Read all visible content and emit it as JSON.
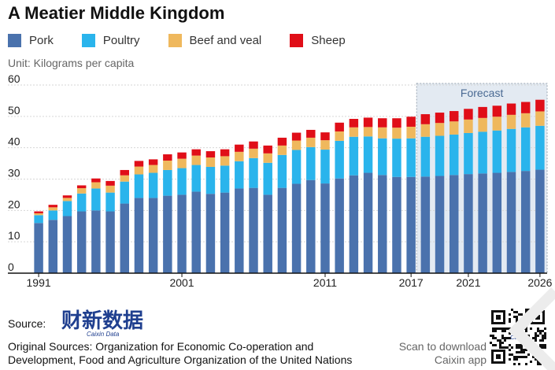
{
  "title": "A Meatier Middle Kingdom",
  "unit_label": "Unit: Kilograms per capita",
  "legend": [
    {
      "label": "Pork",
      "color": "#4a72ad"
    },
    {
      "label": "Poultry",
      "color": "#2ab4ec"
    },
    {
      "label": "Beef and veal",
      "color": "#efb85d"
    },
    {
      "label": "Sheep",
      "color": "#e00e18"
    }
  ],
  "forecast_label": "Forecast",
  "source_label": "Source:",
  "logo": {
    "name": "财新数据",
    "subtitle": "Caixin Data"
  },
  "original_sources": "Original Sources: Organization for Economic Co-operation and Development, Food and Agriculture Organization of the United Nations",
  "scan_text": "Scan to download Caixin app",
  "qr_caption": "Caixin",
  "chart_data": {
    "type": "bar",
    "stacked": true,
    "title": "A Meatier Middle Kingdom",
    "ylabel": "Unit: Kilograms per capita",
    "ylim": [
      0,
      60
    ],
    "yticks": [
      0,
      10,
      20,
      30,
      40,
      50,
      60
    ],
    "xtick_labels": [
      "1991",
      "2001",
      "2011",
      "2017",
      "2021",
      "2026"
    ],
    "grid": true,
    "forecast_range": [
      "2018",
      "2026"
    ],
    "categories": [
      "1991",
      "1992",
      "1993",
      "1994",
      "1995",
      "1996",
      "1997",
      "1998",
      "1999",
      "2000",
      "2001",
      "2002",
      "2003",
      "2004",
      "2005",
      "2006",
      "2007",
      "2008",
      "2009",
      "2010",
      "2011",
      "2012",
      "2013",
      "2014",
      "2015",
      "2016",
      "2017",
      "2018",
      "2019",
      "2020",
      "2021",
      "2022",
      "2023",
      "2024",
      "2025",
      "2026"
    ],
    "series": [
      {
        "name": "Pork",
        "color": "#4a72ad",
        "values": [
          16,
          17,
          18.2,
          19.7,
          20,
          19.7,
          22.2,
          24,
          24,
          24.7,
          25,
          26,
          25.3,
          25.7,
          27,
          27.2,
          25,
          27.2,
          28.5,
          29.7,
          28.6,
          30.2,
          31.2,
          32,
          31.3,
          30.7,
          30.7,
          30.8,
          31,
          31.3,
          31.6,
          31.8,
          32,
          32.3,
          32.6,
          33
        ]
      },
      {
        "name": "Poultry",
        "color": "#2ab4ec",
        "values": [
          2.5,
          3,
          4.8,
          5.7,
          7,
          6,
          7,
          7.5,
          8,
          8.2,
          8.5,
          8.5,
          8.6,
          8.6,
          8.7,
          9.5,
          10.2,
          10.5,
          10.8,
          10.5,
          10.8,
          12,
          12.3,
          11.6,
          11.7,
          12.2,
          12.3,
          12.7,
          12.8,
          12.9,
          13.1,
          13.3,
          13.5,
          13.7,
          13.9,
          14
        ]
      },
      {
        "name": "Beef and veal",
        "color": "#efb85d",
        "values": [
          0.6,
          1,
          1,
          1.7,
          2,
          2.2,
          2,
          2.5,
          2.5,
          3,
          3,
          3,
          3,
          3,
          3,
          3,
          3,
          3,
          3,
          3,
          3,
          3,
          3,
          3,
          3.5,
          3.5,
          3.7,
          4,
          4.1,
          4.2,
          4.3,
          4.4,
          4.4,
          4.5,
          4.5,
          4.6
        ]
      },
      {
        "name": "Sheep",
        "color": "#e00e18",
        "values": [
          0.6,
          0.8,
          0.8,
          0.9,
          1.2,
          1.5,
          1.7,
          1.8,
          1.8,
          2,
          2,
          2,
          2,
          2.2,
          2.3,
          2.3,
          2.5,
          2.5,
          2.5,
          2.5,
          2.5,
          2.8,
          2.7,
          3,
          2.9,
          3,
          3.2,
          3.2,
          3.3,
          3.3,
          3.4,
          3.5,
          3.5,
          3.6,
          3.6,
          3.7
        ]
      }
    ]
  }
}
